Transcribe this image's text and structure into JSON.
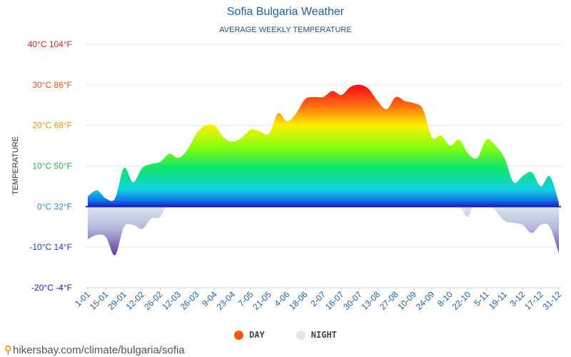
{
  "chart_data": {
    "type": "area",
    "title": "Sofia Bulgaria Weather",
    "subtitle": "AVERAGE WEEKLY TEMPERATURE",
    "ylabel": "TEMPERATURE",
    "ylim": [
      -20,
      40
    ],
    "y_ticks": [
      {
        "value": 40,
        "label": "40°C 104°F",
        "color": "#e8181c"
      },
      {
        "value": 30,
        "label": "30°C 86°F",
        "color": "#e8501a"
      },
      {
        "value": 20,
        "label": "20°C 68°F",
        "color": "#e89a10"
      },
      {
        "value": 10,
        "label": "10°C 50°F",
        "color": "#27b34a"
      },
      {
        "value": 0,
        "label": "0°C 32°F",
        "color": "#1f8fd0"
      },
      {
        "value": -10,
        "label": "-10°C 14°F",
        "color": "#1e3ab8"
      },
      {
        "value": -20,
        "label": "-20°C -4°F",
        "color": "#1a1aa8"
      }
    ],
    "x_labels": [
      "1-01",
      "15-01",
      "29-01",
      "12-02",
      "26-02",
      "12-03",
      "26-03",
      "9-04",
      "23-04",
      "7-05",
      "21-05",
      "4-06",
      "18-06",
      "2-07",
      "16-07",
      "30-07",
      "13-08",
      "27-08",
      "10-09",
      "24-09",
      "8-10",
      "22-10",
      "5-11",
      "19-11",
      "3-12",
      "17-12",
      "31-12"
    ],
    "series": [
      {
        "name": "DAY",
        "color": "#ee5a0f",
        "values": [
          2.5,
          4,
          2,
          2,
          9.5,
          6,
          9.5,
          10.5,
          11,
          13,
          12,
          14,
          18,
          20,
          20,
          17,
          16,
          17,
          19,
          18.5,
          18,
          23,
          21,
          23,
          26.5,
          27,
          27,
          28.5,
          27.5,
          29.5,
          30,
          29,
          26,
          24,
          27,
          26,
          25.5,
          24,
          17,
          17.5,
          15,
          16.5,
          13,
          12,
          16.5,
          15,
          12,
          6,
          7.5,
          8.5,
          5,
          7.5,
          1
        ]
      },
      {
        "name": "NIGHT",
        "color": "#dde6f2",
        "values": [
          -8,
          -7,
          -7.5,
          -12,
          -5,
          -4.5,
          -5.5,
          -3,
          -2.5,
          1.5,
          1.5,
          1,
          5,
          5,
          3.5,
          2,
          7.5,
          8,
          6,
          9,
          11,
          10,
          12,
          15,
          15,
          14.5,
          15,
          14,
          15.5,
          15.5,
          14.5,
          13,
          12.5,
          13,
          12,
          11,
          10.5,
          5.5,
          4,
          3.5,
          6,
          1,
          -2.5,
          3.5,
          1.5,
          -1,
          -3.5,
          -4,
          -4.5,
          -6.5,
          -4.5,
          -5,
          -11.5
        ]
      }
    ],
    "legend_placement": "bottom",
    "grid": true
  },
  "source": {
    "text": "hikersbay.com/climate/bulgaria/sofia"
  }
}
